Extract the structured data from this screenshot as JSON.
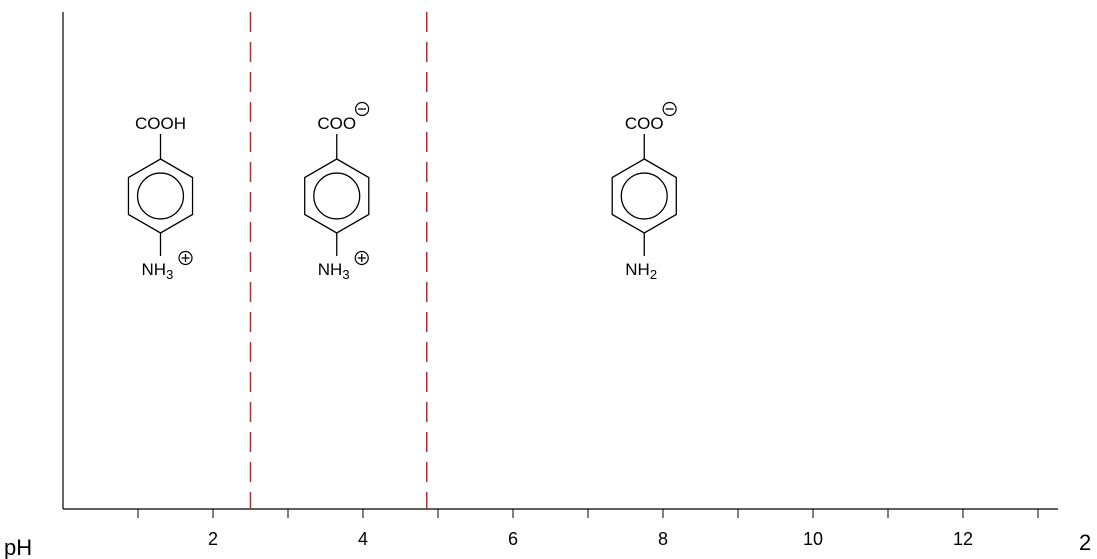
{
  "axis": {
    "label": "pH",
    "tick_labels": [
      "2",
      "4",
      "6",
      "8",
      "10",
      "12"
    ],
    "range": [
      0,
      13.3
    ],
    "clipped_label_right": "2"
  },
  "pka_lines": {
    "values": [
      2.5,
      4.85
    ],
    "color": "#cc2222"
  },
  "species": [
    {
      "ph_position": 1.3,
      "top_group": {
        "text": "COOH",
        "charge": ""
      },
      "bottom_group": {
        "main": "NH",
        "sub": "3",
        "charge": "+"
      }
    },
    {
      "ph_position": 3.65,
      "top_group": {
        "text": "COO",
        "charge": "-"
      },
      "bottom_group": {
        "main": "NH",
        "sub": "3",
        "charge": "+"
      }
    },
    {
      "ph_position": 7.75,
      "top_group": {
        "text": "COO",
        "charge": "-"
      },
      "bottom_group": {
        "main": "NH",
        "sub": "2",
        "charge": ""
      }
    }
  ]
}
